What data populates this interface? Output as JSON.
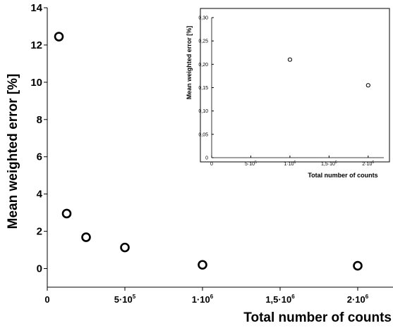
{
  "chart_data": [
    {
      "type": "scatter",
      "marker": "open-circle",
      "xlabel": "Total number of counts",
      "ylabel": "Mean weighted error [%]",
      "xlim": [
        0,
        2200000
      ],
      "ylim": [
        -1,
        14
      ],
      "y_ticks": [
        {
          "value": 0,
          "label": "0"
        },
        {
          "value": 2,
          "label": "2"
        },
        {
          "value": 4,
          "label": "4"
        },
        {
          "value": 6,
          "label": "6"
        },
        {
          "value": 8,
          "label": "8"
        },
        {
          "value": 10,
          "label": "10"
        },
        {
          "value": 12,
          "label": "12"
        },
        {
          "value": 14,
          "label": "14"
        }
      ],
      "x_ticks": [
        {
          "value": 0,
          "label": "0",
          "exp": ""
        },
        {
          "value": 500000,
          "label": "5·10",
          "exp": "5"
        },
        {
          "value": 1000000,
          "label": "1·10",
          "exp": "6"
        },
        {
          "value": 1500000,
          "label": "1,5·10",
          "exp": "6"
        },
        {
          "value": 2000000,
          "label": "2·10",
          "exp": "6"
        }
      ],
      "x": [
        75000,
        125000,
        250000,
        500000,
        1000000,
        2000000
      ],
      "y": [
        12.45,
        2.95,
        1.68,
        1.13,
        0.2,
        0.15
      ]
    },
    {
      "type": "scatter",
      "marker": "open-circle",
      "xlabel": "Total number of counts",
      "ylabel": "Mean weighted error [%]",
      "xlim": [
        0,
        2200000
      ],
      "ylim": [
        0,
        0.3
      ],
      "y_ticks": [
        {
          "value": 0,
          "label": "0"
        },
        {
          "value": 0.05,
          "label": "0,05"
        },
        {
          "value": 0.1,
          "label": "0,10"
        },
        {
          "value": 0.15,
          "label": "0,15"
        },
        {
          "value": 0.2,
          "label": "0,20"
        },
        {
          "value": 0.25,
          "label": "0,25"
        },
        {
          "value": 0.3,
          "label": "0,30"
        }
      ],
      "x_ticks": [
        {
          "value": 0,
          "label": "0",
          "exp": ""
        },
        {
          "value": 500000,
          "label": "5·10",
          "exp": "5"
        },
        {
          "value": 1000000,
          "label": "1·10",
          "exp": "6"
        },
        {
          "value": 1500000,
          "label": "1,5·10",
          "exp": "6"
        },
        {
          "value": 2000000,
          "label": "2·10",
          "exp": "6"
        }
      ],
      "x": [
        1000000,
        2000000
      ],
      "y": [
        0.21,
        0.155
      ]
    }
  ]
}
